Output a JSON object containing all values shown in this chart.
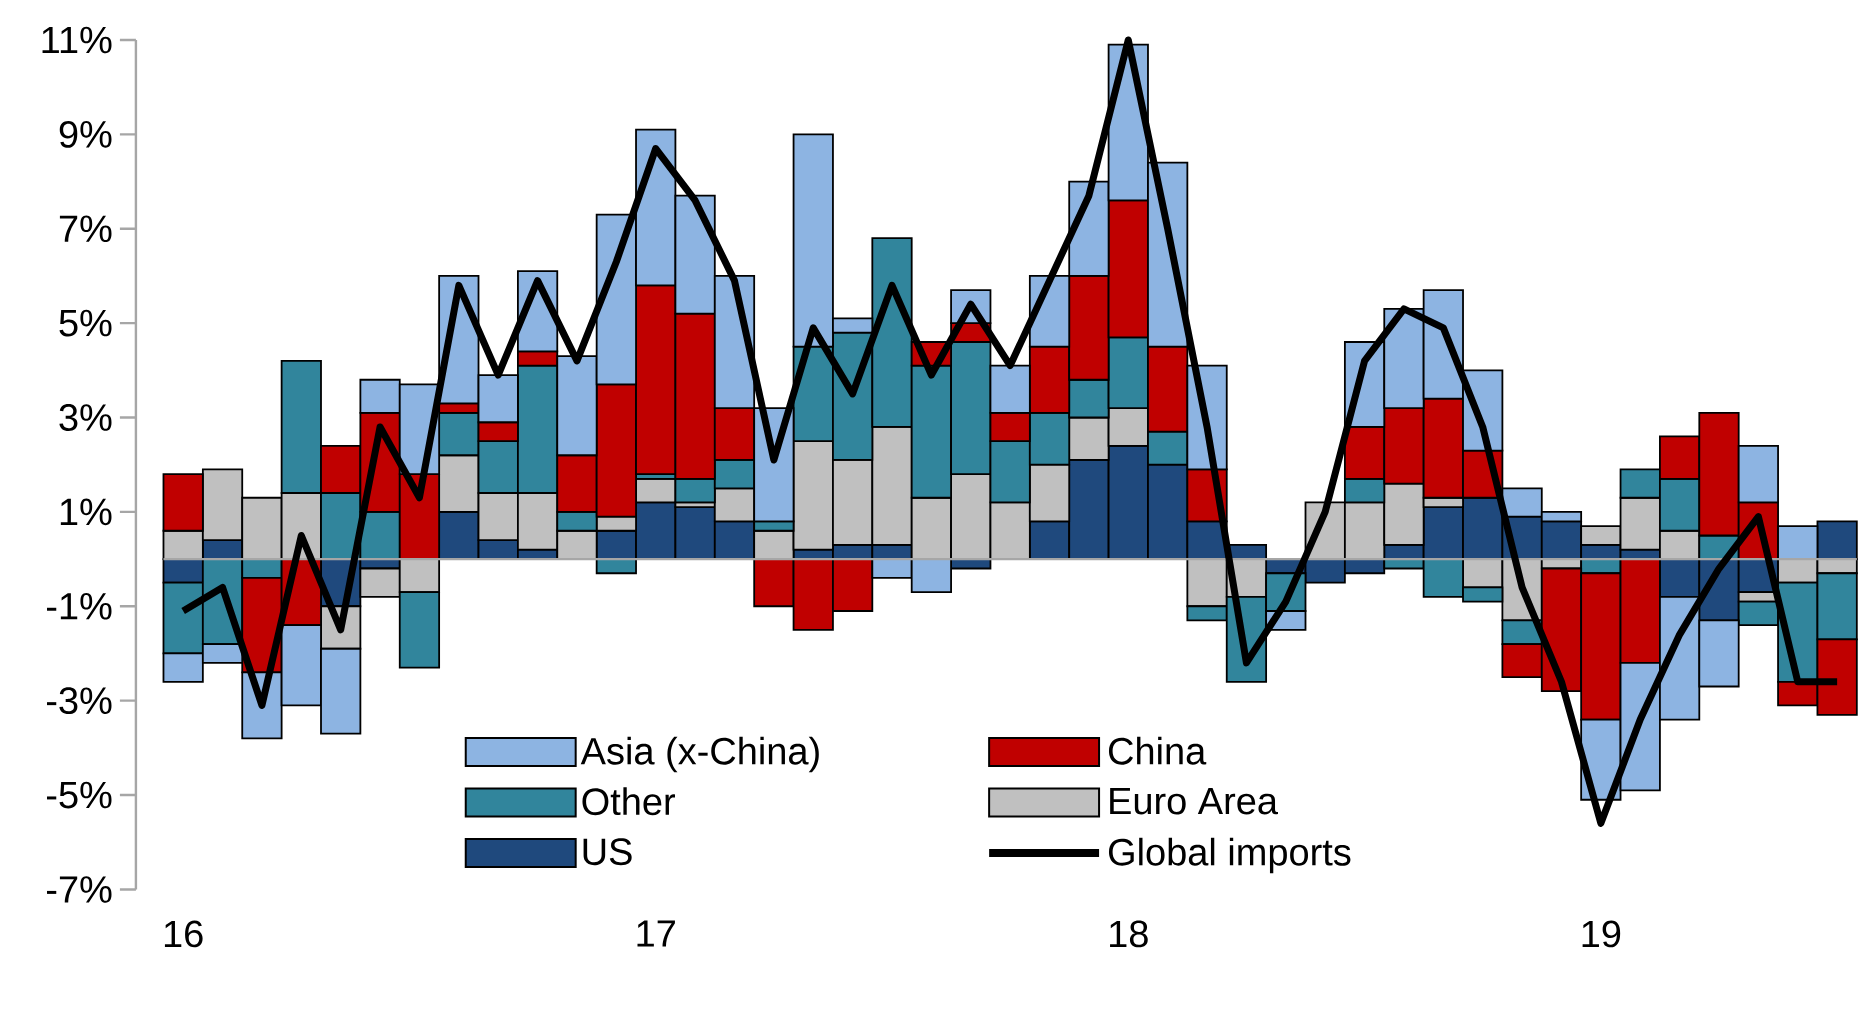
{
  "chart_data": {
    "type": "bar",
    "stacked": true,
    "legend": "bottom",
    "categories": [
      "16",
      null,
      null,
      null,
      null,
      null,
      null,
      null,
      null,
      null,
      null,
      null,
      "17",
      null,
      null,
      null,
      null,
      null,
      null,
      null,
      null,
      null,
      null,
      null,
      "18",
      null,
      null,
      null,
      null,
      null,
      null,
      null,
      null,
      null,
      null,
      null,
      "19",
      null,
      null,
      null,
      null,
      null,
      null
    ],
    "ylim": [
      -7,
      11
    ],
    "yticks": [
      {
        "value": -7,
        "label": "-7%"
      },
      {
        "value": -5,
        "label": "-5%"
      },
      {
        "value": -3,
        "label": "-3%"
      },
      {
        "value": -1,
        "label": "-1%"
      },
      {
        "value": 1,
        "label": "1%"
      },
      {
        "value": 3,
        "label": "3%"
      },
      {
        "value": 5,
        "label": "5%"
      },
      {
        "value": 7,
        "label": "7%"
      },
      {
        "value": 9,
        "label": "9%"
      },
      {
        "value": 11,
        "label": "11%"
      }
    ],
    "series": [
      {
        "name": "US",
        "color": "#1f497d",
        "values": [
          -0.5,
          0.4,
          null,
          0,
          -1.0,
          -0.2,
          0,
          1.0,
          0.4,
          0.2,
          0,
          0.6,
          1.2,
          1.1,
          0.8,
          0,
          0.2,
          0.3,
          0.3,
          null,
          -0.2,
          0,
          0.8,
          2.1,
          2.4,
          2.0,
          0.8,
          0.3,
          -0.3,
          -0.5,
          -0.3,
          0.3,
          1.1,
          1.3,
          0.9,
          0.8,
          0.3,
          0.2,
          -0.8,
          -1.3,
          -0.7,
          0,
          0.8
        ]
      },
      {
        "name": "Euro Area",
        "color": "#c0c0c0",
        "values": [
          0.6,
          1.5,
          1.3,
          1.4,
          -0.9,
          -0.6,
          -0.7,
          1.2,
          1.0,
          1.2,
          0.6,
          0.3,
          0.5,
          0.1,
          0.7,
          0.6,
          2.3,
          1.8,
          2.5,
          1.3,
          1.8,
          1.2,
          1.2,
          0.9,
          0.8,
          0,
          -1.0,
          -0.8,
          0,
          1.2,
          1.2,
          1.3,
          0.2,
          -0.6,
          -1.3,
          -0.2,
          0.4,
          1.1,
          0.6,
          0,
          -0.2,
          -0.5,
          -0.3
        ]
      },
      {
        "name": "Other",
        "color": "#31859c",
        "values": [
          -1.5,
          -1.8,
          -0.4,
          2.8,
          1.4,
          1.0,
          -1.6,
          0.9,
          1.1,
          2.7,
          0.4,
          -0.3,
          0.1,
          0.5,
          0.6,
          0.2,
          2.0,
          2.7,
          4.0,
          2.8,
          2.8,
          1.3,
          1.1,
          0.8,
          1.5,
          0.7,
          -0.3,
          -1.8,
          -0.8,
          0,
          0.5,
          -0.2,
          -0.8,
          -0.3,
          -0.5,
          0,
          -0.3,
          0.6,
          1.1,
          0.5,
          -0.5,
          -2.1,
          -1.4
        ]
      },
      {
        "name": "China",
        "color": "#c00000",
        "values": [
          1.2,
          0,
          -2.0,
          -1.4,
          1.0,
          2.1,
          1.8,
          0.2,
          0.4,
          0.3,
          1.2,
          2.8,
          4.0,
          3.5,
          1.1,
          -1.0,
          -1.5,
          -1.1,
          null,
          0.5,
          0.4,
          0.6,
          1.4,
          2.2,
          2.9,
          1.8,
          1.1,
          0,
          0,
          0,
          1.1,
          1.6,
          2.1,
          1.0,
          -0.7,
          -2.6,
          -3.1,
          -2.2,
          0.9,
          2.6,
          1.2,
          -0.5,
          -1.6
        ]
      },
      {
        "name": "Asia (x-China)",
        "color": "#8db4e2",
        "values": [
          -0.6,
          -0.4,
          -1.4,
          -1.7,
          -1.8,
          0.7,
          1.9,
          2.7,
          1.0,
          1.7,
          2.1,
          3.6,
          3.3,
          2.5,
          2.8,
          2.4,
          4.5,
          0.3,
          -0.4,
          -0.7,
          0.7,
          1.0,
          1.5,
          2.0,
          3.3,
          3.9,
          2.2,
          0,
          -0.4,
          0,
          1.8,
          2.1,
          2.3,
          1.7,
          0.6,
          0.2,
          -1.7,
          -2.7,
          -2.6,
          -1.4,
          1.2,
          0.7,
          0
        ]
      },
      {
        "name": "Global imports",
        "type": "line",
        "color": "#000000",
        "values": [
          -1.1,
          -0.6,
          -3.1,
          0.5,
          -1.5,
          2.8,
          1.3,
          5.8,
          3.9,
          5.9,
          4.2,
          6.3,
          8.7,
          7.6,
          5.9,
          2.1,
          4.9,
          3.5,
          5.8,
          3.9,
          5.4,
          4.1,
          5.9,
          7.7,
          11,
          7.0,
          2.8,
          -2.2,
          -0.9,
          1.0,
          4.2,
          5.3,
          4.9,
          2.8,
          -0.6,
          -2.6,
          -5.6,
          -3.4,
          -1.6,
          -0.2,
          0.9,
          -2.6,
          -2.6
        ]
      }
    ]
  }
}
